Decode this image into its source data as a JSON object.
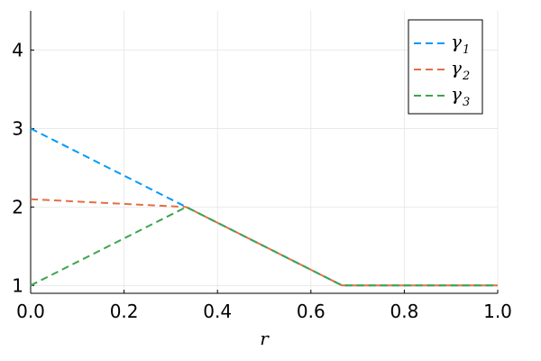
{
  "chart_data": {
    "type": "line",
    "title": "",
    "xlabel": "r",
    "ylabel": "",
    "xlim": [
      0,
      1
    ],
    "ylim": [
      0.9,
      4.5
    ],
    "xticks": [
      0.0,
      0.2,
      0.4,
      0.6,
      0.8,
      1.0
    ],
    "xtick_labels": [
      "0.0",
      "0.2",
      "0.4",
      "0.6",
      "0.8",
      "1.0"
    ],
    "yticks": [
      1,
      2,
      3,
      4
    ],
    "ytick_labels": [
      "1",
      "2",
      "3",
      "4"
    ],
    "grid": true,
    "legend_position": "top-right",
    "series": [
      {
        "name": "γ",
        "subscript": "1",
        "color": "#009AFA",
        "dash": "dashed",
        "x": [
          0,
          0.3333,
          0.6667,
          1.0
        ],
        "y": [
          3.0,
          2.0,
          1.0,
          1.0
        ]
      },
      {
        "name": "γ",
        "subscript": "2",
        "color": "#E26F46",
        "dash": "dashed",
        "x": [
          0,
          0.3333,
          0.6667,
          1.0
        ],
        "y": [
          2.1,
          2.0,
          1.0,
          1.0
        ]
      },
      {
        "name": "γ",
        "subscript": "3",
        "color": "#3EA44E",
        "dash": "dashed",
        "x": [
          0,
          0.3333,
          0.6667,
          1.0
        ],
        "y": [
          1.0,
          2.0,
          1.0,
          1.0
        ]
      }
    ]
  }
}
